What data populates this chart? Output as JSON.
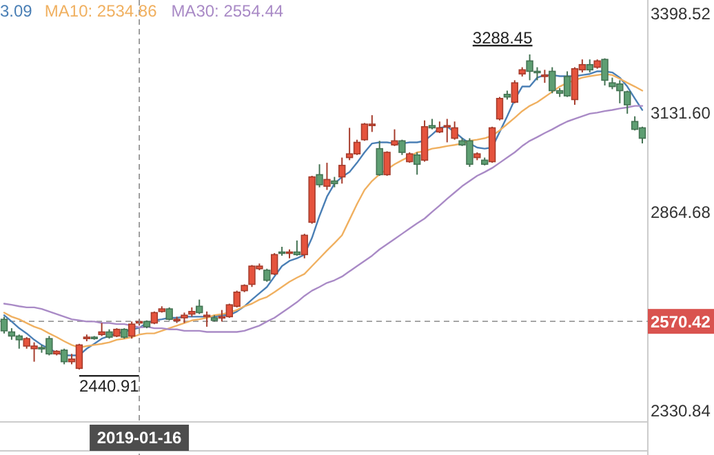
{
  "chart_data": {
    "type": "candlestick",
    "categories": [
      null,
      null,
      null,
      null,
      null,
      null,
      null,
      null,
      null,
      null,
      null,
      null,
      null,
      null,
      null,
      null,
      null,
      null,
      "2019-01-16",
      null,
      null,
      null,
      null,
      null,
      null,
      null,
      null,
      null,
      null,
      null,
      null,
      null,
      null,
      null,
      null,
      null,
      null,
      null,
      null,
      null,
      null,
      null,
      null,
      null,
      null,
      null,
      null,
      null,
      null,
      null,
      null,
      null,
      null,
      null,
      null,
      null,
      null,
      null,
      null,
      null,
      null,
      null,
      null,
      null,
      null,
      null,
      null,
      null,
      null,
      null,
      null,
      null,
      null,
      null,
      null,
      null,
      null,
      null,
      null,
      null,
      null,
      null,
      null,
      null,
      null,
      null
    ],
    "ohlc": [
      [
        2576,
        2583,
        2538,
        2545
      ],
      [
        2542,
        2552,
        2521,
        2531
      ],
      [
        2531,
        2535,
        2497,
        2521
      ],
      [
        2504,
        2528,
        2497,
        2524
      ],
      [
        2497,
        2514,
        2462,
        2504
      ],
      [
        2500,
        2507,
        2486,
        2497
      ],
      [
        2524,
        2531,
        2479,
        2483
      ],
      [
        2483,
        2493,
        2479,
        2490
      ],
      [
        2493,
        2497,
        2455,
        2462
      ],
      [
        2462,
        2483,
        2455,
        2469
      ],
      [
        2444,
        2510,
        2440.91,
        2507
      ],
      [
        2524,
        2535,
        2517,
        2528
      ],
      [
        2528,
        2531,
        2521,
        2524
      ],
      [
        2535,
        2566,
        2531,
        2542
      ],
      [
        2542,
        2549,
        2524,
        2528
      ],
      [
        2531,
        2552,
        2528,
        2549
      ],
      [
        2549,
        2552,
        2524,
        2528
      ],
      [
        2531,
        2570,
        2524,
        2563
      ],
      [
        2566,
        2576,
        2559,
        2570
      ],
      [
        2570,
        2573,
        2552,
        2556
      ],
      [
        2566,
        2597,
        2563,
        2594
      ],
      [
        2597,
        2611,
        2594,
        2604
      ],
      [
        2604,
        2608,
        2573,
        2576
      ],
      [
        2573,
        2583,
        2566,
        2576
      ],
      [
        2580,
        2594,
        2566,
        2587
      ],
      [
        2590,
        2608,
        2583,
        2597
      ],
      [
        2611,
        2629,
        2590,
        2594
      ],
      [
        2583,
        2597,
        2556,
        2587
      ],
      [
        2580,
        2587,
        2570,
        2573
      ],
      [
        2580,
        2601,
        2570,
        2583
      ],
      [
        2583,
        2618,
        2580,
        2615
      ],
      [
        2611,
        2653,
        2608,
        2649
      ],
      [
        2653,
        2670,
        2649,
        2667
      ],
      [
        2670,
        2722,
        2663,
        2719
      ],
      [
        2712,
        2726,
        2708,
        2719
      ],
      [
        2708,
        2712,
        2677,
        2681
      ],
      [
        2698,
        2754,
        2695,
        2750
      ],
      [
        2757,
        2771,
        2747,
        2754
      ],
      [
        2754,
        2764,
        2740,
        2757
      ],
      [
        2757,
        2788,
        2747,
        2750
      ],
      [
        2750,
        2806,
        2740,
        2802
      ],
      [
        2837,
        2962,
        2833,
        2959
      ],
      [
        2965,
        2993,
        2931,
        2938
      ],
      [
        2934,
        2997,
        2924,
        2952
      ],
      [
        2948,
        2959,
        2931,
        2941
      ],
      [
        2959,
        3011,
        2941,
        2990
      ],
      [
        3011,
        3091,
        3004,
        3021
      ],
      [
        3021,
        3059,
        3018,
        3052
      ],
      [
        3059,
        3104,
        3056,
        3101
      ],
      [
        3097,
        3125,
        3080,
        3101
      ],
      [
        3035,
        3056,
        2962,
        2965
      ],
      [
        2965,
        3028,
        2962,
        3025
      ],
      [
        3045,
        3087,
        3042,
        3056
      ],
      [
        3056,
        3059,
        3018,
        3025
      ],
      [
        3000,
        3025,
        2997,
        3021
      ],
      [
        3018,
        3025,
        2965,
        2993
      ],
      [
        3004,
        3111,
        3000,
        3094
      ],
      [
        3097,
        3115,
        3087,
        3091
      ],
      [
        3080,
        3108,
        3077,
        3091
      ],
      [
        3094,
        3115,
        3052,
        3097
      ],
      [
        3063,
        3108,
        3059,
        3091
      ],
      [
        3056,
        3063,
        3042,
        3045
      ],
      [
        3056,
        3063,
        2986,
        2993
      ],
      [
        3011,
        3025,
        3004,
        3021
      ],
      [
        3004,
        3011,
        2990,
        2993
      ],
      [
        3000,
        3094,
        2997,
        3091
      ],
      [
        3115,
        3174,
        3111,
        3170
      ],
      [
        3181,
        3191,
        3167,
        3174
      ],
      [
        3160,
        3219,
        3157,
        3212
      ],
      [
        3236,
        3254,
        3229,
        3247
      ],
      [
        3271,
        3288.45,
        3219,
        3243
      ],
      [
        3243,
        3254,
        3219,
        3240
      ],
      [
        3229,
        3247,
        3212,
        3233
      ],
      [
        3243,
        3254,
        3184,
        3191
      ],
      [
        3191,
        3198,
        3174,
        3184
      ],
      [
        3229,
        3243,
        3174,
        3177
      ],
      [
        3167,
        3254,
        3153,
        3250
      ],
      [
        3247,
        3275,
        3240,
        3261
      ],
      [
        3261,
        3275,
        3240,
        3247
      ],
      [
        3254,
        3275,
        3250,
        3271
      ],
      [
        3275,
        3278,
        3205,
        3219
      ],
      [
        3212,
        3226,
        3195,
        3202
      ],
      [
        3209,
        3219,
        3157,
        3191
      ],
      [
        3188,
        3191,
        3129,
        3153
      ],
      [
        3108,
        3122,
        3084,
        3087
      ],
      [
        3091,
        3094,
        3049,
        3063
      ]
    ],
    "colors": [
      "#5e9e72",
      "#5e9e72",
      "#5e9e72",
      "#e5533d",
      "#e5533d",
      "#5e9e72",
      "#5e9e72",
      "#e5533d",
      "#5e9e72",
      "#e5533d",
      "#e5533d",
      "#e5533d",
      "#5e9e72",
      "#e5533d",
      "#5e9e72",
      "#e5533d",
      "#5e9e72",
      "#e5533d",
      "#e5533d",
      "#5e9e72",
      "#e5533d",
      "#e5533d",
      "#5e9e72",
      "#e5533d",
      "#e5533d",
      "#e5533d",
      "#5e9e72",
      "#e5533d",
      "#5e9e72",
      "#e5533d",
      "#e5533d",
      "#e5533d",
      "#e5533d",
      "#e5533d",
      "#e5533d",
      "#5e9e72",
      "#e5533d",
      "#5e9e72",
      "#e5533d",
      "#5e9e72",
      "#e5533d",
      "#e5533d",
      "#5e9e72",
      "#e5533d",
      "#5e9e72",
      "#e5533d",
      "#e5533d",
      "#e5533d",
      "#e5533d",
      "#e5533d",
      "#5e9e72",
      "#e5533d",
      "#e5533d",
      "#5e9e72",
      "#e5533d",
      "#5e9e72",
      "#e5533d",
      "#5e9e72",
      "#e5533d",
      "#e5533d",
      "#e5533d",
      "#5e9e72",
      "#5e9e72",
      "#e5533d",
      "#5e9e72",
      "#e5533d",
      "#e5533d",
      "#5e9e72",
      "#e5533d",
      "#e5533d",
      "#5e9e72",
      "#5e9e72",
      "#e5533d",
      "#5e9e72",
      "#5e9e72",
      "#5e9e72",
      "#e5533d",
      "#e5533d",
      "#5e9e72",
      "#e5533d",
      "#5e9e72",
      "#5e9e72",
      "#5e9e72",
      "#5e9e72",
      "#5e9e72",
      "#5e9e72"
    ],
    "series": [
      {
        "type": "line",
        "name": "3.09",
        "color": "#4a7fb5",
        "values": [
          2587,
          2570,
          2552,
          2538,
          2521,
          2507,
          2497,
          2486,
          2479,
          2479,
          2479,
          2497,
          2510,
          2524,
          2531,
          2538,
          2542,
          2549,
          2553,
          2566,
          2573,
          2576,
          2580,
          2580,
          2583,
          2583,
          2583,
          2583,
          2583,
          2587,
          2587,
          2597,
          2611,
          2629,
          2646,
          2663,
          2691,
          2719,
          2733,
          2740,
          2750,
          2795,
          2854,
          2906,
          2941,
          2959,
          2972,
          2997,
          3025,
          3049,
          3052,
          3052,
          3049,
          3049,
          3052,
          3052,
          3056,
          3073,
          3091,
          3094,
          3080,
          3063,
          3049,
          3038,
          3035,
          3038,
          3080,
          3122,
          3167,
          3202,
          3202,
          3226,
          3233,
          3233,
          3230,
          3230,
          3230,
          3233,
          3236,
          3243,
          3243,
          3240,
          3226,
          3202,
          3170,
          3139
        ]
      },
      {
        "type": "line",
        "name": "MA10: 2534.86",
        "color": "#f0b060",
        "values": [
          2594,
          2583,
          2576,
          2566,
          2556,
          2549,
          2538,
          2528,
          2517,
          2507,
          2500,
          2504,
          2507,
          2510,
          2514,
          2521,
          2524,
          2528,
          2535,
          2538,
          2538,
          2545,
          2552,
          2559,
          2566,
          2573,
          2576,
          2580,
          2587,
          2590,
          2594,
          2601,
          2611,
          2618,
          2629,
          2636,
          2649,
          2663,
          2677,
          2688,
          2698,
          2719,
          2740,
          2761,
          2781,
          2802,
          2844,
          2886,
          2924,
          2948,
          2966,
          2979,
          2993,
          3004,
          3014,
          3025,
          3028,
          3035,
          3038,
          3042,
          3045,
          3049,
          3056,
          3059,
          3063,
          3070,
          3084,
          3101,
          3118,
          3136,
          3150,
          3160,
          3174,
          3188,
          3202,
          3212,
          3219,
          3226,
          3230,
          3233,
          3236,
          3233,
          3223,
          3212,
          3202,
          3191
        ]
      },
      {
        "type": "line",
        "name": "MA30: 2554.44",
        "color": "#a98ac6",
        "values": [
          2618,
          2615,
          2611,
          2608,
          2608,
          2604,
          2597,
          2590,
          2583,
          2576,
          2573,
          2570,
          2570,
          2566,
          2566,
          2563,
          2563,
          2559,
          2554,
          2556,
          2552,
          2552,
          2549,
          2549,
          2545,
          2545,
          2545,
          2542,
          2542,
          2542,
          2542,
          2542,
          2545,
          2552,
          2559,
          2570,
          2580,
          2594,
          2608,
          2622,
          2639,
          2653,
          2663,
          2674,
          2681,
          2691,
          2705,
          2719,
          2733,
          2747,
          2764,
          2778,
          2792,
          2806,
          2820,
          2834,
          2847,
          2865,
          2882,
          2900,
          2917,
          2934,
          2948,
          2962,
          2972,
          2983,
          2997,
          3011,
          3025,
          3042,
          3056,
          3066,
          3077,
          3087,
          3098,
          3108,
          3115,
          3122,
          3129,
          3132,
          3136,
          3139,
          3143,
          3146,
          3150,
          3150
        ]
      }
    ],
    "ylim": [
      2300,
      3420
    ],
    "yticks": [
      {
        "value": 3398.52,
        "label": "3398.52"
      },
      {
        "value": 3131.6,
        "label": "3131.60"
      },
      {
        "value": 2864.68,
        "label": "2864.68"
      },
      {
        "value": 2330.84,
        "label": "2330.84"
      }
    ],
    "ref_lines": [
      {
        "axis": "y",
        "value": 2570.42,
        "label": "2570.42",
        "color": "#999999",
        "line_style": "dashed"
      }
    ],
    "annotations": [
      "3288.45",
      "2440.91"
    ],
    "legend": "top left"
  }
}
